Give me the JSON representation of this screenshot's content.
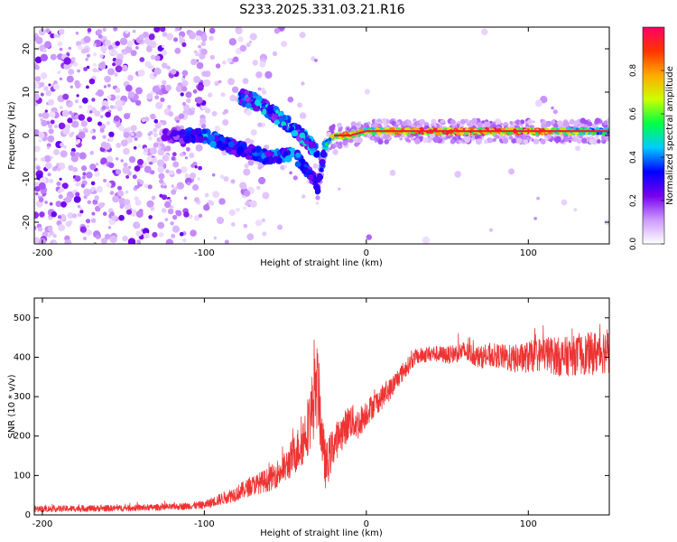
{
  "title": "S233.2025.331.03.21.R16",
  "chart_data": [
    {
      "type": "heatmap",
      "xlabel": "Height of straight line (km)",
      "ylabel": "Frequency (Hz)",
      "xlim": [
        -205,
        150
      ],
      "ylim": [
        -25,
        25
      ],
      "xticks": [
        -200,
        -100,
        0,
        100
      ],
      "yticks": [
        -20,
        -10,
        0,
        10,
        20
      ],
      "colorbar": {
        "label": "Normalized spectral amplitude",
        "range": [
          0,
          1
        ],
        "ticks": [
          "0.0",
          "0.2",
          "0.4",
          "0.6",
          "0.8"
        ],
        "colors": [
          "#ffffff",
          "#cc99ff",
          "#7700ee",
          "#0000ff",
          "#00ccff",
          "#00ff44",
          "#ccff00",
          "#ffaa00",
          "#ff3300",
          "#ff0066"
        ]
      },
      "ridge": {
        "x": [
          -120,
          -100,
          -80,
          -60,
          -45,
          -35,
          -30,
          -25,
          -20,
          -10,
          0,
          20,
          60,
          100,
          150
        ],
        "freq": [
          0,
          0,
          -3,
          -5,
          -4,
          -9,
          -12,
          -2,
          0,
          0,
          1,
          1,
          1,
          1,
          1
        ],
        "amplitude": [
          0.25,
          0.45,
          0.35,
          0.4,
          0.45,
          0.35,
          0.3,
          0.5,
          0.85,
          0.9,
          0.7,
          0.95,
          0.95,
          0.95,
          0.5
        ]
      },
      "upper_branch": {
        "x": [
          -78,
          -70,
          -60,
          -50,
          -40,
          -30
        ],
        "freq": [
          9,
          8,
          6,
          3,
          0,
          -4
        ]
      }
    },
    {
      "type": "line",
      "xlabel": "Height of straight line (km)",
      "ylabel": "SNR (10 * v/v)",
      "xlim": [
        -205,
        150
      ],
      "ylim": [
        0,
        550
      ],
      "xticks": [
        -200,
        -100,
        0,
        100
      ],
      "yticks": [
        0,
        100,
        200,
        300,
        400,
        500
      ],
      "color": "#ee3333",
      "series": [
        {
          "name": "SNR",
          "x": [
            -205,
            -180,
            -150,
            -120,
            -100,
            -90,
            -80,
            -70,
            -60,
            -50,
            -45,
            -40,
            -35,
            -32,
            -30,
            -27,
            -25,
            -20,
            -15,
            -10,
            -5,
            0,
            5,
            10,
            15,
            20,
            25,
            30,
            40,
            50,
            60,
            70,
            80,
            90,
            100,
            110,
            120,
            130,
            140,
            150
          ],
          "values": [
            15,
            16,
            17,
            20,
            25,
            40,
            55,
            75,
            90,
            120,
            150,
            180,
            240,
            300,
            330,
            180,
            120,
            180,
            210,
            240,
            230,
            260,
            280,
            300,
            320,
            350,
            375,
            400,
            410,
            405,
            415,
            400,
            405,
            395,
            400,
            410,
            400,
            405,
            410,
            420
          ],
          "spread": [
            8,
            8,
            8,
            8,
            10,
            15,
            20,
            25,
            30,
            40,
            50,
            60,
            80,
            100,
            110,
            70,
            60,
            50,
            45,
            45,
            40,
            35,
            30,
            30,
            28,
            25,
            22,
            20,
            20,
            22,
            25,
            28,
            30,
            35,
            40,
            45,
            50,
            50,
            55,
            60
          ]
        }
      ]
    }
  ]
}
